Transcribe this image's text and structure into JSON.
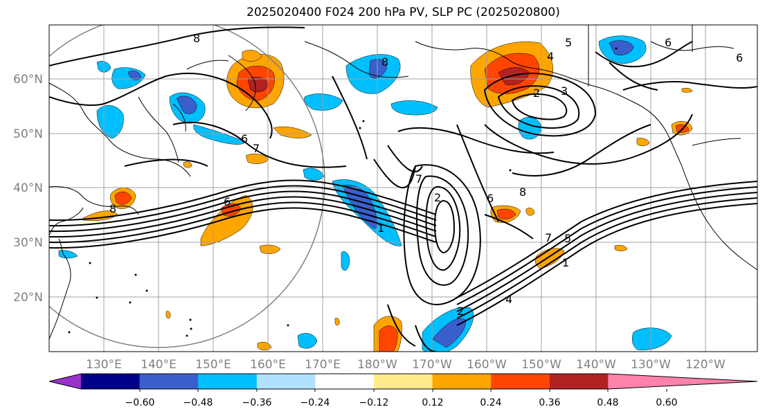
{
  "title": "2025020400 F024 200 hPa PV, SLP PC (2025020800)",
  "lat_labels": [
    "60°N",
    "50°N",
    "40°N",
    "30°N",
    "20°N"
  ],
  "lon_labels": [
    "130°E",
    "140°E",
    "150°E",
    "160°E",
    "170°E",
    "180°W",
    "170°W",
    "160°W",
    "150°W",
    "140°W",
    "130°W",
    "120°W"
  ],
  "colorbar": {
    "ticks": [
      "−0.60",
      "−0.48",
      "−0.36",
      "−0.24",
      "−0.12",
      "0.12",
      "0.24",
      "0.36",
      "0.48",
      "0.60"
    ],
    "colors": [
      "#9932cc",
      "#00008b",
      "#3a5fcd",
      "#00bfff",
      "#b0e2ff",
      "#ffffff",
      "#ffeb8a",
      "#ffa500",
      "#ff4500",
      "#b22222",
      "#ff82ab"
    ]
  },
  "contour_labels": [
    "8",
    "5",
    "4",
    "3",
    "2",
    "6",
    "6",
    "8",
    "6",
    "7",
    "7",
    "2",
    "6",
    "8",
    "7",
    "5",
    "1",
    "4",
    "2",
    "1",
    "6",
    "8"
  ]
}
